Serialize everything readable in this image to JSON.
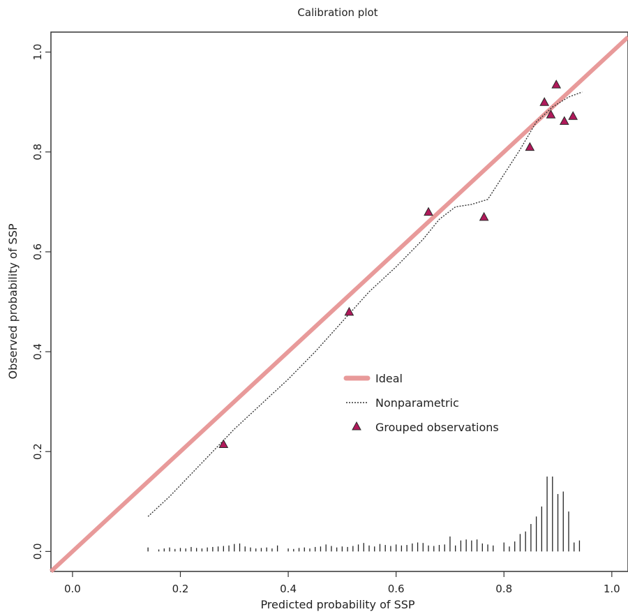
{
  "chart_data": {
    "type": "scatter",
    "title": "Calibration plot",
    "xlabel": "Predicted probability of SSP",
    "ylabel": "Observed probability of SSP",
    "xlim": [
      -0.04,
      1.03
    ],
    "ylim": [
      -0.04,
      1.04
    ],
    "x_ticks": [
      "0.0",
      "0.2",
      "0.4",
      "0.6",
      "0.8",
      "1.0"
    ],
    "y_ticks": [
      "0.0",
      "0.2",
      "0.4",
      "0.6",
      "0.8",
      "1.0"
    ],
    "grid": false,
    "legend_position": "center-right",
    "colors": {
      "ideal": "#e89a9a",
      "nonparametric": "#333333",
      "grouped_fill": "#b0195a",
      "grouped_stroke": "#2a2a2a",
      "axis": "#333333"
    },
    "series": [
      {
        "name": "Ideal",
        "kind": "line",
        "x": [
          -0.04,
          1.03
        ],
        "y": [
          -0.04,
          1.03
        ]
      },
      {
        "name": "Nonparametric",
        "kind": "dotted-line",
        "x": [
          0.14,
          0.18,
          0.22,
          0.26,
          0.3,
          0.35,
          0.4,
          0.45,
          0.5,
          0.55,
          0.6,
          0.65,
          0.68,
          0.71,
          0.74,
          0.77,
          0.8,
          0.83,
          0.86,
          0.89,
          0.92,
          0.945
        ],
        "y": [
          0.07,
          0.11,
          0.155,
          0.2,
          0.245,
          0.295,
          0.345,
          0.4,
          0.46,
          0.52,
          0.57,
          0.625,
          0.665,
          0.69,
          0.695,
          0.705,
          0.755,
          0.805,
          0.86,
          0.89,
          0.91,
          0.92
        ]
      },
      {
        "name": "Grouped observations",
        "kind": "triangle-points",
        "x": [
          0.28,
          0.513,
          0.66,
          0.763,
          0.848,
          0.875,
          0.887,
          0.897,
          0.912,
          0.928
        ],
        "y": [
          0.215,
          0.48,
          0.68,
          0.67,
          0.81,
          0.9,
          0.875,
          0.935,
          0.862,
          0.872
        ]
      }
    ],
    "rug": {
      "baseline": 0,
      "x": [
        0.14,
        0.16,
        0.17,
        0.18,
        0.19,
        0.2,
        0.21,
        0.22,
        0.23,
        0.24,
        0.25,
        0.26,
        0.27,
        0.28,
        0.29,
        0.3,
        0.31,
        0.32,
        0.33,
        0.34,
        0.35,
        0.36,
        0.37,
        0.38,
        0.4,
        0.41,
        0.42,
        0.43,
        0.44,
        0.45,
        0.46,
        0.47,
        0.48,
        0.49,
        0.5,
        0.51,
        0.52,
        0.53,
        0.54,
        0.55,
        0.56,
        0.57,
        0.58,
        0.59,
        0.6,
        0.61,
        0.62,
        0.63,
        0.64,
        0.65,
        0.66,
        0.67,
        0.68,
        0.69,
        0.7,
        0.71,
        0.72,
        0.73,
        0.74,
        0.75,
        0.76,
        0.77,
        0.78,
        0.8,
        0.81,
        0.82,
        0.83,
        0.84,
        0.85,
        0.86,
        0.87,
        0.88,
        0.89,
        0.9,
        0.91,
        0.92,
        0.93,
        0.94
      ],
      "heights": [
        0.008,
        0.004,
        0.006,
        0.008,
        0.005,
        0.007,
        0.006,
        0.009,
        0.007,
        0.006,
        0.008,
        0.009,
        0.01,
        0.011,
        0.012,
        0.015,
        0.016,
        0.01,
        0.008,
        0.006,
        0.007,
        0.008,
        0.006,
        0.012,
        0.006,
        0.005,
        0.007,
        0.008,
        0.006,
        0.009,
        0.01,
        0.014,
        0.011,
        0.008,
        0.01,
        0.009,
        0.011,
        0.014,
        0.017,
        0.012,
        0.01,
        0.015,
        0.013,
        0.011,
        0.014,
        0.012,
        0.013,
        0.016,
        0.018,
        0.017,
        0.012,
        0.011,
        0.013,
        0.014,
        0.03,
        0.012,
        0.022,
        0.024,
        0.022,
        0.024,
        0.016,
        0.014,
        0.012,
        0.018,
        0.01,
        0.02,
        0.035,
        0.04,
        0.055,
        0.07,
        0.09,
        0.15,
        0.15,
        0.115,
        0.12,
        0.08,
        0.018,
        0.022
      ]
    }
  }
}
